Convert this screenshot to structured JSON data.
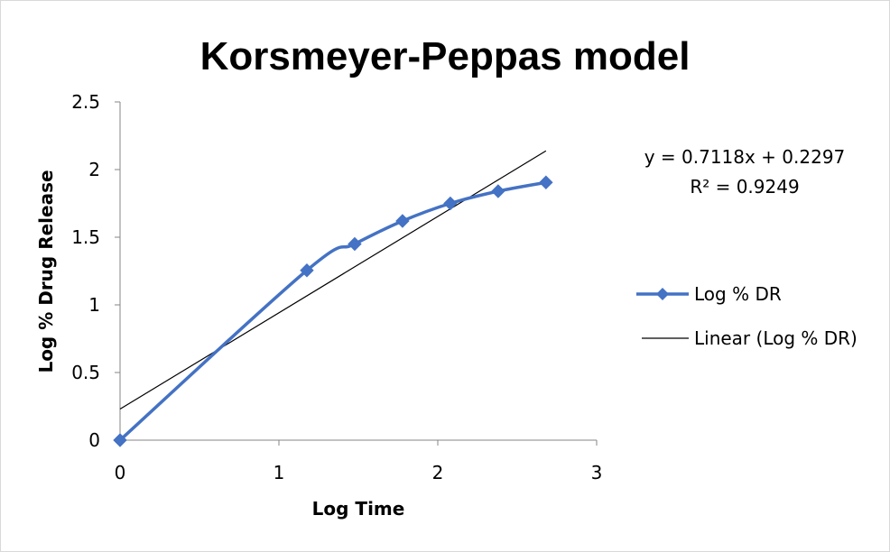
{
  "chart_data": {
    "type": "scatter",
    "title": "Korsmeyer-Peppas model",
    "xlabel": "Log Time",
    "ylabel": "Log % Drug Release",
    "xlim": [
      0,
      3
    ],
    "ylim": [
      0,
      2.5
    ],
    "x_ticks": [
      "0",
      "1",
      "2",
      "3"
    ],
    "y_ticks": [
      "0",
      "0.5",
      "1",
      "1.5",
      "2",
      "2.5"
    ],
    "grid": false,
    "legend_position": "right",
    "series": [
      {
        "name": "Log % DR",
        "color": "#4472C4",
        "marker": "diamond",
        "line": "smooth",
        "x": [
          0,
          1.176,
          1.477,
          1.778,
          2.079,
          2.38,
          2.681
        ],
        "y": [
          0,
          1.255,
          1.45,
          1.62,
          1.75,
          1.84,
          1.905
        ]
      }
    ],
    "trendline": {
      "name": "Linear (Log % DR)",
      "color": "#000000",
      "slope": 0.7118,
      "intercept": 0.2297,
      "x_range": [
        0,
        2.681
      ],
      "equation_label": "y = 0.7118x + 0.2297",
      "r2_label": "R² = 0.9249"
    }
  }
}
